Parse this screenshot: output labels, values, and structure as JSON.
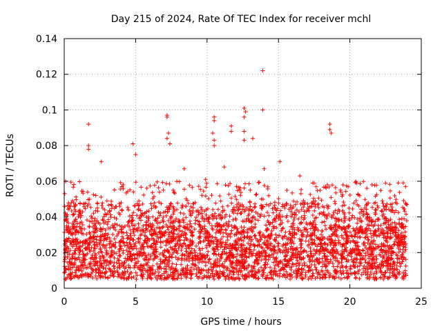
{
  "chart_data": {
    "type": "scatter",
    "title": "Day 215 of 2024, Rate Of TEC Index for receiver mchl",
    "xlabel": "GPS time / hours",
    "ylabel": "ROTI / TECUs",
    "xlim": [
      0,
      25
    ],
    "ylim": [
      0,
      0.14
    ],
    "xticks": [
      "0",
      "5",
      "10",
      "15",
      "20",
      "25"
    ],
    "xtick_values": [
      0,
      5,
      10,
      15,
      20,
      25
    ],
    "yticks": [
      "0",
      "0.02",
      "0.04",
      "0.06",
      "0.08",
      "0.1",
      "0.12",
      "0.14"
    ],
    "ytick_values": [
      0,
      0.02,
      0.04,
      0.06,
      0.08,
      0.1,
      0.12,
      0.14
    ],
    "grid": true,
    "marker": "+",
    "color": "#ff0000",
    "series": [
      {
        "name": "ROTI",
        "notable_points": [
          {
            "x": 1.7,
            "y": 0.092
          },
          {
            "x": 1.7,
            "y": 0.08
          },
          {
            "x": 1.7,
            "y": 0.078
          },
          {
            "x": 4.8,
            "y": 0.081
          },
          {
            "x": 7.2,
            "y": 0.097
          },
          {
            "x": 7.2,
            "y": 0.096
          },
          {
            "x": 7.3,
            "y": 0.087
          },
          {
            "x": 7.2,
            "y": 0.084
          },
          {
            "x": 7.4,
            "y": 0.081
          },
          {
            "x": 10.5,
            "y": 0.096
          },
          {
            "x": 10.5,
            "y": 0.094
          },
          {
            "x": 10.4,
            "y": 0.087
          },
          {
            "x": 10.5,
            "y": 0.083
          },
          {
            "x": 10.5,
            "y": 0.08
          },
          {
            "x": 11.7,
            "y": 0.091
          },
          {
            "x": 11.7,
            "y": 0.088
          },
          {
            "x": 12.6,
            "y": 0.101
          },
          {
            "x": 12.7,
            "y": 0.099
          },
          {
            "x": 12.6,
            "y": 0.096
          },
          {
            "x": 12.6,
            "y": 0.088
          },
          {
            "x": 12.6,
            "y": 0.083
          },
          {
            "x": 13.2,
            "y": 0.084
          },
          {
            "x": 13.9,
            "y": 0.122
          },
          {
            "x": 13.9,
            "y": 0.1
          },
          {
            "x": 18.6,
            "y": 0.092
          },
          {
            "x": 18.6,
            "y": 0.089
          },
          {
            "x": 18.7,
            "y": 0.087
          },
          {
            "x": 0.1,
            "y": 0.06
          },
          {
            "x": 2.6,
            "y": 0.071
          },
          {
            "x": 5.0,
            "y": 0.075
          },
          {
            "x": 8.4,
            "y": 0.067
          },
          {
            "x": 9.9,
            "y": 0.061
          },
          {
            "x": 11.2,
            "y": 0.068
          },
          {
            "x": 14.0,
            "y": 0.067
          },
          {
            "x": 15.1,
            "y": 0.071
          },
          {
            "x": 16.5,
            "y": 0.063
          },
          {
            "x": 17.5,
            "y": 0.059
          },
          {
            "x": 22.5,
            "y": 0.059
          },
          {
            "x": 23.9,
            "y": 0.057
          }
        ],
        "dense_band": {
          "x_range": [
            0,
            24
          ],
          "y_typical": [
            0.005,
            0.035
          ],
          "y_upper_envelope": 0.06
        }
      }
    ]
  }
}
